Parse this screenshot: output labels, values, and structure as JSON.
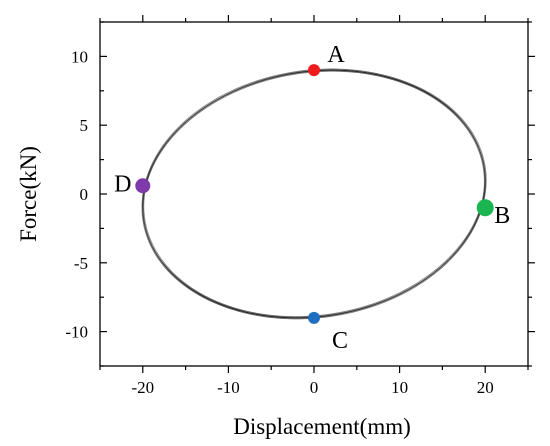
{
  "chart_data": {
    "type": "line",
    "title": "",
    "xlabel": "Displacement(mm)",
    "ylabel": "Force(kN)",
    "xlim": [
      -25,
      25
    ],
    "ylim": [
      -12.5,
      12.5
    ],
    "x_ticks": [
      -20,
      -10,
      0,
      10,
      20
    ],
    "y_ticks": [
      10,
      5,
      0,
      -5,
      -10
    ],
    "x_tick_labels": [
      "-20",
      "-10",
      "0",
      "10",
      "20"
    ],
    "y_tick_labels": [
      "10",
      "5",
      "0",
      "-5",
      "-10"
    ],
    "grid": false,
    "hysteresis_loop": {
      "x_amplitude": 20,
      "y_amplitude": 9,
      "phase_offset_deg": 6,
      "line_color": "#555555"
    },
    "points": [
      {
        "label": "A",
        "x": 0,
        "y": 9.0,
        "color": "#ee1c1c"
      },
      {
        "label": "B",
        "x": 20,
        "y": -1.0,
        "color": "#1bb552"
      },
      {
        "label": "C",
        "x": 0,
        "y": -9.0,
        "color": "#1f6fc0"
      },
      {
        "label": "D",
        "x": -20,
        "y": 0.6,
        "color": "#7d3aa8"
      }
    ]
  }
}
